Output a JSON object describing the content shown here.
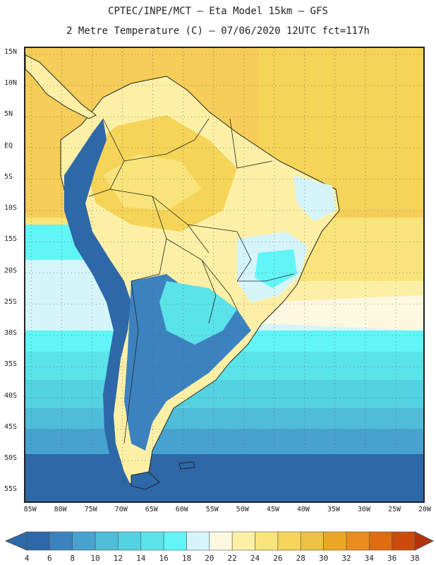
{
  "header": {
    "line1": "CPTEC/INPE/MCT –  Eta Model 15km – GFS",
    "line2": "2 Metre Temperature (C) – 07/06/2020 12UTC fct=117h"
  },
  "map": {
    "lat_labels": [
      "15N",
      "10N",
      "5N",
      "EQ",
      "5S",
      "10S",
      "15S",
      "20S",
      "25S",
      "30S",
      "35S",
      "40S",
      "45S",
      "50S",
      "55S"
    ],
    "lon_labels": [
      "85W",
      "80W",
      "75W",
      "70W",
      "65W",
      "60W",
      "55W",
      "50W",
      "45W",
      "40W",
      "35W",
      "30W",
      "25W",
      "20W"
    ],
    "lat_range": [
      -57,
      16
    ],
    "lon_range": [
      -86,
      -20
    ]
  },
  "colorbar": {
    "ticks": [
      "4",
      "6",
      "8",
      "10",
      "12",
      "14",
      "16",
      "18",
      "20",
      "22",
      "24",
      "26",
      "28",
      "30",
      "32",
      "34",
      "36",
      "38"
    ],
    "colors": [
      "#2d68a8",
      "#3c82bf",
      "#47a2cf",
      "#4fbcd9",
      "#55d2e1",
      "#5be3ea",
      "#62f5f7",
      "#d5f5fb",
      "#fdf8e0",
      "#fdf0a6",
      "#f8e47a",
      "#f5d458",
      "#eec043",
      "#eaa723",
      "#e88d1d",
      "#e06c12",
      "#cc4b0c",
      "#b33308"
    ]
  }
}
